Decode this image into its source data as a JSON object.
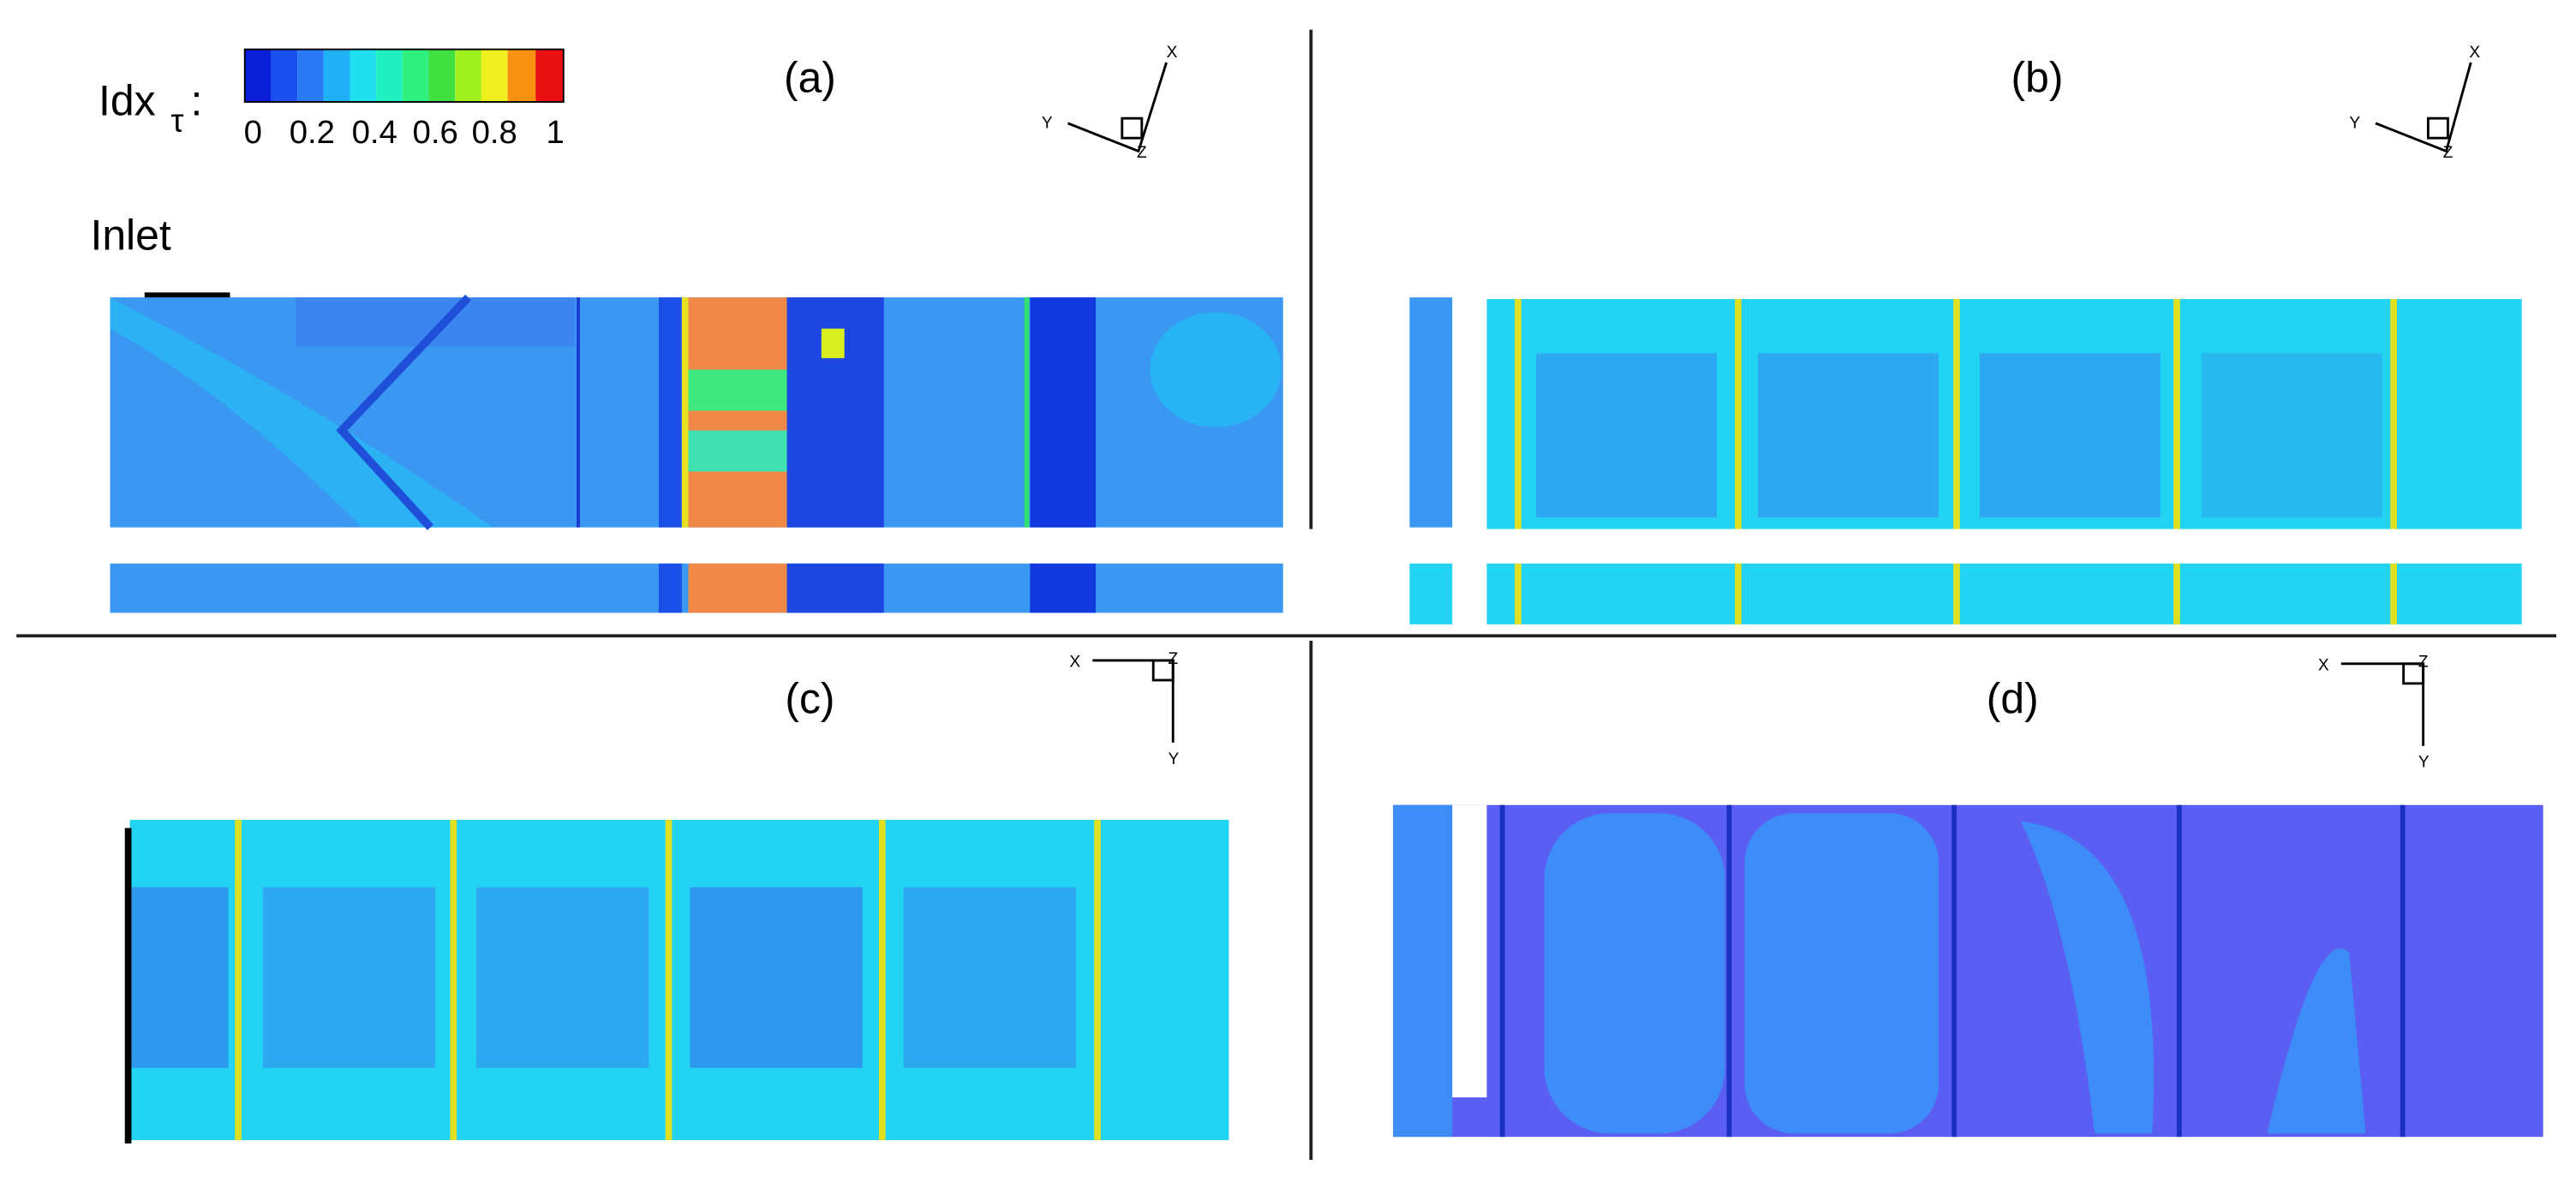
{
  "legend": {
    "label": "Idx",
    "subscript": "τ",
    "suffix": ":",
    "ticks": [
      "0",
      "0.2",
      "0.4",
      "0.6",
      "0.8",
      "1"
    ]
  },
  "inlet": "Inlet",
  "panels": [
    {
      "label": "(a)",
      "axes": {
        "x": "X",
        "y": "Y",
        "z": "Z"
      }
    },
    {
      "label": "(b)",
      "axes": {
        "x": "X",
        "y": "Y",
        "z": "Z"
      }
    },
    {
      "label": "(c)",
      "axes": {
        "x": "X",
        "y": "Y",
        "z": "Z"
      }
    },
    {
      "label": "(d)",
      "axes": {
        "x": "X",
        "y": "Y",
        "z": "Z"
      }
    }
  ]
}
